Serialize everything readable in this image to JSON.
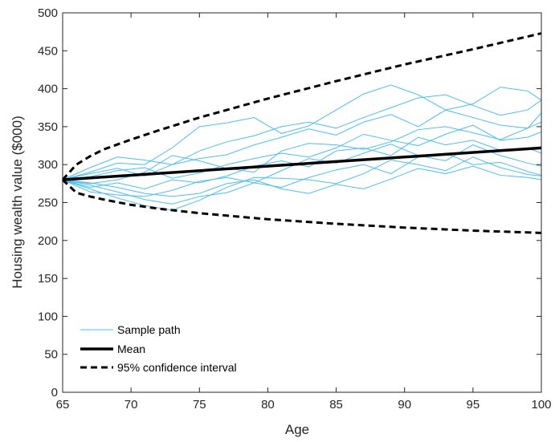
{
  "chart_data": {
    "type": "line",
    "title": "",
    "xlabel": "Age",
    "ylabel": "Housing wealth value ($000)",
    "xlim": [
      65,
      100
    ],
    "ylim": [
      0,
      500
    ],
    "xticks": [
      65,
      70,
      75,
      80,
      85,
      90,
      95,
      100
    ],
    "yticks": [
      0,
      50,
      100,
      150,
      200,
      250,
      300,
      350,
      400,
      450,
      500
    ],
    "grid": false,
    "legend_position": "bottom-left",
    "colors": {
      "sample": "#4DBEEE",
      "mean": "#000000",
      "ci": "#000000"
    },
    "mean": {
      "name": "Mean",
      "x": [
        65,
        100
      ],
      "y": [
        280,
        322
      ]
    },
    "confidence_interval": {
      "name": "95% confidence interval",
      "x": [
        65,
        66,
        67,
        68,
        70,
        72,
        75,
        80,
        85,
        90,
        95,
        100
      ],
      "upper": [
        280,
        300,
        311,
        320,
        333,
        345,
        362,
        387,
        410,
        432,
        452,
        473
      ],
      "lower": [
        280,
        263,
        258,
        254,
        247,
        242,
        236,
        228,
        222,
        217,
        213,
        210
      ]
    },
    "sample_paths": {
      "name": "Sample path",
      "x": [
        65,
        67,
        69,
        71,
        73,
        75,
        77,
        79,
        81,
        83,
        85,
        87,
        89,
        91,
        93,
        95,
        97,
        99,
        100
      ],
      "series": [
        {
          "values": [
            280,
            290,
            302,
            300,
            322,
            350,
            355,
            362,
            341,
            351,
            372,
            393,
            405,
            392,
            372,
            380,
            402,
            397,
            385
          ]
        },
        {
          "values": [
            280,
            288,
            295,
            285,
            300,
            318,
            330,
            338,
            350,
            356,
            348,
            362,
            375,
            388,
            392,
            378,
            365,
            372,
            385
          ]
        },
        {
          "values": [
            280,
            296,
            310,
            306,
            300,
            308,
            313,
            326,
            336,
            347,
            339,
            356,
            366,
            350,
            372,
            362,
            352,
            348,
            368
          ]
        },
        {
          "values": [
            280,
            275,
            280,
            290,
            312,
            305,
            295,
            290,
            318,
            328,
            326,
            320,
            330,
            346,
            350,
            342,
            333,
            348,
            356
          ]
        },
        {
          "values": [
            280,
            284,
            292,
            296,
            282,
            289,
            300,
            308,
            315,
            310,
            322,
            340,
            332,
            325,
            340,
            352,
            332,
            336,
            343
          ]
        },
        {
          "values": [
            280,
            270,
            276,
            268,
            280,
            276,
            285,
            298,
            305,
            297,
            318,
            322,
            312,
            336,
            326,
            332,
            319,
            322,
            315
          ]
        },
        {
          "values": [
            280,
            264,
            260,
            258,
            266,
            278,
            283,
            276,
            292,
            308,
            302,
            315,
            327,
            312,
            305,
            326,
            312,
            302,
            298
          ]
        },
        {
          "values": [
            280,
            273,
            264,
            254,
            248,
            258,
            263,
            276,
            270,
            283,
            293,
            300,
            288,
            310,
            315,
            300,
            303,
            291,
            286
          ]
        },
        {
          "values": [
            280,
            268,
            256,
            246,
            240,
            253,
            270,
            283,
            282,
            280,
            275,
            288,
            306,
            300,
            292,
            310,
            296,
            287,
            285
          ]
        },
        {
          "values": [
            280,
            276,
            270,
            262,
            258,
            262,
            275,
            280,
            268,
            262,
            274,
            268,
            281,
            295,
            288,
            298,
            286,
            283,
            280
          ]
        }
      ]
    }
  },
  "legend": {
    "sample_label": "Sample path",
    "mean_label": "Mean",
    "ci_label": "95% confidence interval"
  }
}
